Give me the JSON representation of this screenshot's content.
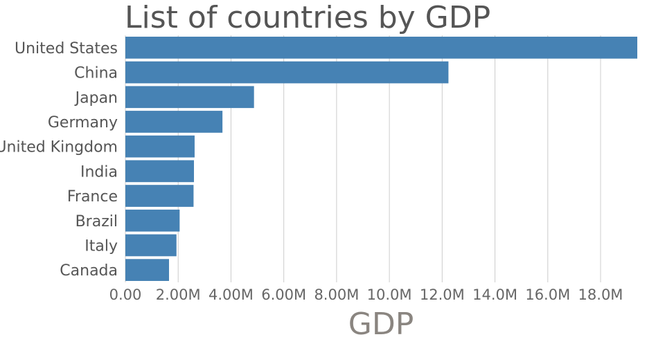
{
  "chart_data": {
    "type": "bar",
    "orientation": "horizontal",
    "title": "List of countries by GDP",
    "xlabel": "GDP",
    "ylabel": "",
    "categories": [
      "United States",
      "China",
      "Japan",
      "Germany",
      "United Kingdom",
      "India",
      "France",
      "Brazil",
      "Italy",
      "Canada"
    ],
    "values": [
      19390604,
      12237700,
      4872137,
      3677439,
      2622434,
      2597491,
      2582501,
      2055506,
      1934798,
      1653043
    ],
    "xlim": [
      0,
      19390604
    ],
    "x_ticks": [
      0,
      2000000,
      4000000,
      6000000,
      8000000,
      10000000,
      12000000,
      14000000,
      16000000,
      18000000
    ],
    "x_tick_labels": [
      "0.00",
      "2.00M",
      "4.00M",
      "6.00M",
      "8.00M",
      "10.0M",
      "12.0M",
      "14.0M",
      "16.0M",
      "18.0M"
    ],
    "grid": "vertical",
    "bar_color": "#4682b4"
  }
}
